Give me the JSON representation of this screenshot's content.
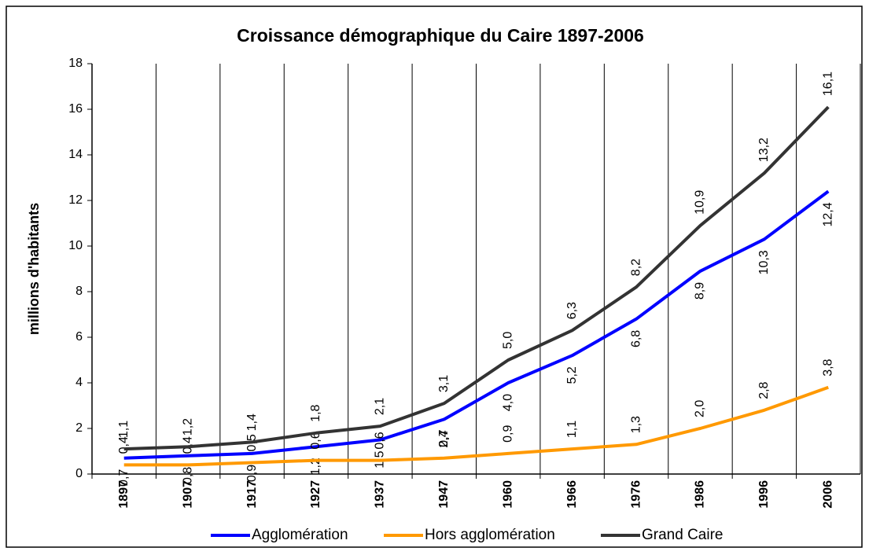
{
  "chart_data": {
    "type": "line",
    "title": "Croissance démographique du Caire 1897-2006",
    "y_label": "millions d'habitants",
    "categories": [
      "1897",
      "1907",
      "1917",
      "1927",
      "1937",
      "1947",
      "1960",
      "1966",
      "1976",
      "1986",
      "1996",
      "2006"
    ],
    "series": [
      {
        "name": "Agglomération",
        "color": "#0000ff",
        "values": [
          0.7,
          0.8,
          0.9,
          1.2,
          1.5,
          2.4,
          4.0,
          5.2,
          6.8,
          8.9,
          10.3,
          12.4
        ],
        "value_labels": [
          "0,7",
          "0,8",
          "0,9",
          "1,2",
          "1,5",
          "2,4",
          "4,0",
          "5,2",
          "6,8",
          "8,9",
          "10,3",
          "12,4"
        ]
      },
      {
        "name": "Hors agglomération",
        "color": "#ff9900",
        "values": [
          0.4,
          0.4,
          0.5,
          0.6,
          0.6,
          0.7,
          0.9,
          1.1,
          1.3,
          2.0,
          2.8,
          3.8
        ],
        "value_labels": [
          "0,4",
          "0,4",
          "0,5",
          "0,6",
          "0,6",
          "0,7",
          "0,9",
          "1,1",
          "1,3",
          "2,0",
          "2,8",
          "3,8"
        ]
      },
      {
        "name": "Grand Caire",
        "color": "#333333",
        "values": [
          1.1,
          1.2,
          1.4,
          1.8,
          2.1,
          3.1,
          5.0,
          6.3,
          8.2,
          10.9,
          13.2,
          16.1
        ],
        "value_labels": [
          "1,1",
          "1,2",
          "1,4",
          "1,8",
          "2,1",
          "3,1",
          "5,0",
          "6,3",
          "8,2",
          "10,9",
          "13,2",
          "16,1"
        ]
      }
    ],
    "ylim": [
      0,
      18
    ],
    "yticks": [
      0,
      2,
      4,
      6,
      8,
      10,
      12,
      14,
      16,
      18
    ],
    "grid": true
  }
}
